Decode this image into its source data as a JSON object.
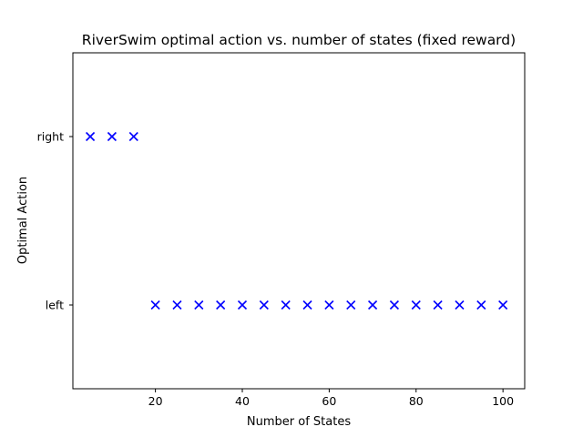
{
  "chart_data": {
    "type": "scatter",
    "title": "RiverSwim optimal action vs. number of states (fixed reward)",
    "xlabel": "Number of States",
    "ylabel": "Optimal Action",
    "x_ticks": [
      20,
      40,
      60,
      80,
      100
    ],
    "x_tick_labels": [
      "20",
      "40",
      "60",
      "80",
      "100"
    ],
    "y_categories": [
      "left",
      "right"
    ],
    "xlim": [
      1,
      105
    ],
    "grid": false,
    "legend": "none",
    "series": [
      {
        "marker": "x",
        "color": "#0000ff",
        "x": [
          5,
          10,
          15,
          20,
          25,
          30,
          35,
          40,
          45,
          50,
          55,
          60,
          65,
          70,
          75,
          80,
          85,
          90,
          95,
          100
        ],
        "y": [
          "right",
          "right",
          "right",
          "left",
          "left",
          "left",
          "left",
          "left",
          "left",
          "left",
          "left",
          "left",
          "left",
          "left",
          "left",
          "left",
          "left",
          "left",
          "left",
          "left"
        ]
      }
    ]
  }
}
